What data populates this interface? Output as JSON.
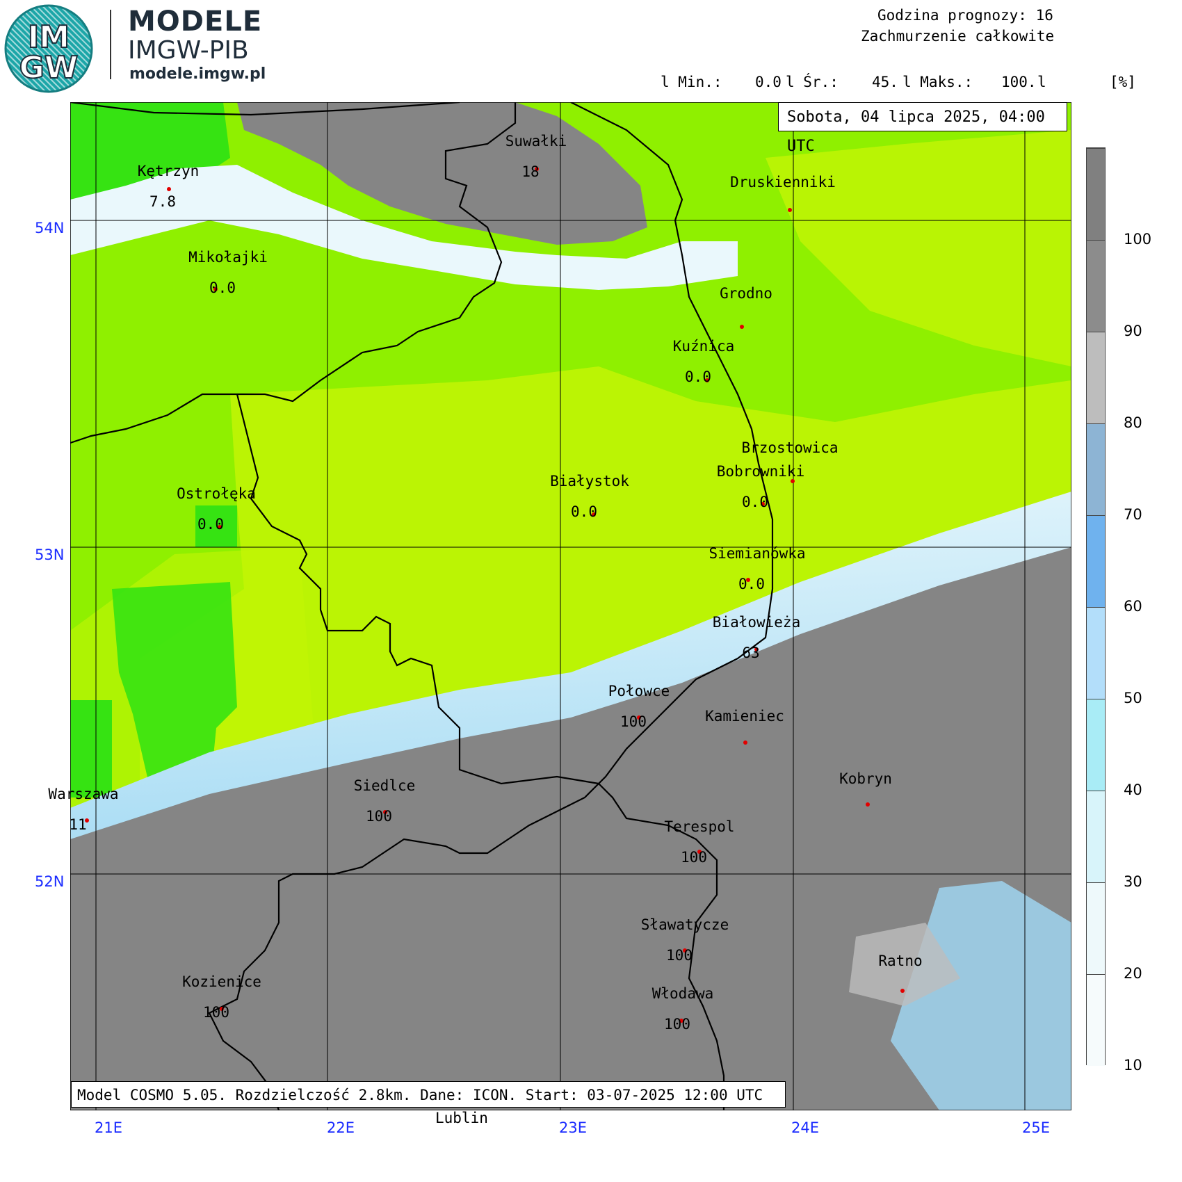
{
  "brand": {
    "logo_text_top": "IM",
    "logo_text_bottom": "GW",
    "name_line1": "MODELE",
    "name_line2": "IMGW-PIB",
    "website": "modele.imgw.pl"
  },
  "header": {
    "forecast_hour": "Godzina prognozy: 16",
    "field": "Zachmurzenie całkowite",
    "stat_min_label": "l Min.:",
    "stat_min_value": "0.0",
    "stat_avg_label": "l Śr.:",
    "stat_avg_value": "45.",
    "stat_max_label": "l Maks.:",
    "stat_max_value": "100.",
    "stat_end": "l",
    "unit": "[%]"
  },
  "date_label": "Sobota, 04 lipca 2025, 04:00 UTC",
  "model_info": "Model COSMO 5.05. Rozdzielczość 2.8km. Dane: ICON. Start: 03-07-2025 12:00 UTC",
  "lat_labels": [
    "54N",
    "53N",
    "52N"
  ],
  "lon_labels": [
    "21E",
    "22E",
    "23E",
    "24E",
    "25E"
  ],
  "outside_city": "Lublin",
  "cities": [
    {
      "name": "Kętrzyn",
      "value": "7.8"
    },
    {
      "name": "Suwałki",
      "value": "18"
    },
    {
      "name": "Druskienniki",
      "value": ""
    },
    {
      "name": "Mikołajki",
      "value": "0.0"
    },
    {
      "name": "Grodno",
      "value": ""
    },
    {
      "name": "Kuźnica",
      "value": "0.0"
    },
    {
      "name": "Brzostowica",
      "value": ""
    },
    {
      "name": "Bobrowniki",
      "value": "0.0"
    },
    {
      "name": "Białystok",
      "value": "0.0"
    },
    {
      "name": "Ostrołęka",
      "value": "0.0"
    },
    {
      "name": "Siemianówka",
      "value": "0.0"
    },
    {
      "name": "Białowieża",
      "value": "63"
    },
    {
      "name": "Połowce",
      "value": "100"
    },
    {
      "name": "Kamieniec",
      "value": ""
    },
    {
      "name": "Kobryn",
      "value": ""
    },
    {
      "name": "Warszawa",
      "value": "11"
    },
    {
      "name": "Siedlce",
      "value": "100"
    },
    {
      "name": "Terespol",
      "value": "100"
    },
    {
      "name": "Sławatycze",
      "value": "100"
    },
    {
      "name": "Ratno",
      "value": ""
    },
    {
      "name": "Kozienice",
      "value": "100"
    },
    {
      "name": "Włodawa",
      "value": "100"
    }
  ],
  "legend": {
    "labels": [
      "100",
      "90",
      "80",
      "70",
      "60",
      "50",
      "40",
      "30",
      "20",
      "10"
    ],
    "colors": [
      "#808080",
      "#8c8c8c",
      "#bdbdbd",
      "#8db4d4",
      "#6fb2ee",
      "#b3defa",
      "#a9ecf6",
      "#d8f4fa",
      "#eef9fb",
      "#f6fbfc"
    ]
  },
  "map_colors": {
    "clear_green": "#8ff000",
    "bright_green": "#36e312",
    "yellow_green": "#c3f505",
    "overcast_gray": "#858585",
    "dark_gray": "#7a7a7a",
    "light_blue": "#a0d8f5",
    "white_band": "#eaf8fc"
  }
}
